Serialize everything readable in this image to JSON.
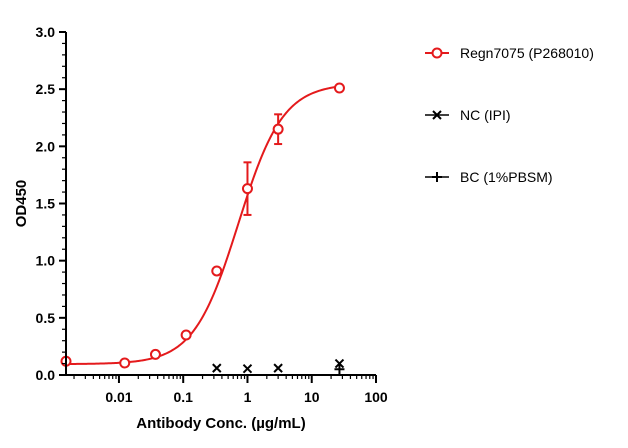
{
  "chart_data": {
    "type": "scatter",
    "xlabel": "Antibody Conc. (µg/mL)",
    "ylabel": "OD450",
    "x_scale": "log",
    "xlim": [
      0.0015,
      100
    ],
    "ylim": [
      0,
      3.0
    ],
    "x_ticks": [
      0.01,
      0.1,
      1,
      10,
      100
    ],
    "x_tick_labels": [
      "0.01",
      "0.1",
      "1",
      "10",
      "100"
    ],
    "y_ticks": [
      0,
      0.5,
      1.0,
      1.5,
      2.0,
      2.5,
      3.0
    ],
    "y_tick_labels": [
      "0.0",
      "0.5",
      "1.0",
      "1.5",
      "2.0",
      "2.5",
      "3.0"
    ],
    "grid": false,
    "legend_position": "right",
    "series": [
      {
        "name": "Regn7075 (P268010)",
        "color": "#e41a1c",
        "marker": "circle",
        "fit_curve": true,
        "x": [
          0.0015,
          0.0123,
          0.037,
          0.111,
          0.333,
          1.0,
          3.0,
          27.0
        ],
        "y": [
          0.12,
          0.105,
          0.18,
          0.35,
          0.91,
          1.63,
          2.15,
          2.51
        ],
        "error": [
          0,
          0,
          0,
          0,
          0,
          0.23,
          0.13,
          0
        ]
      },
      {
        "name": "NC (IPI)",
        "color": "#000000",
        "marker": "x",
        "x": [
          0.333,
          1.0,
          3.0,
          27.0
        ],
        "y": [
          0.06,
          0.055,
          0.06,
          0.1
        ]
      },
      {
        "name": "BC (1%PBSM)",
        "color": "#000000",
        "marker": "plus",
        "x": [
          27.0
        ],
        "y": [
          0.05
        ]
      }
    ],
    "fit": {
      "series": "Regn7075 (P268010)",
      "bottom": 0.095,
      "top": 2.55,
      "ec50": 0.72,
      "hill": 1.25
    }
  }
}
